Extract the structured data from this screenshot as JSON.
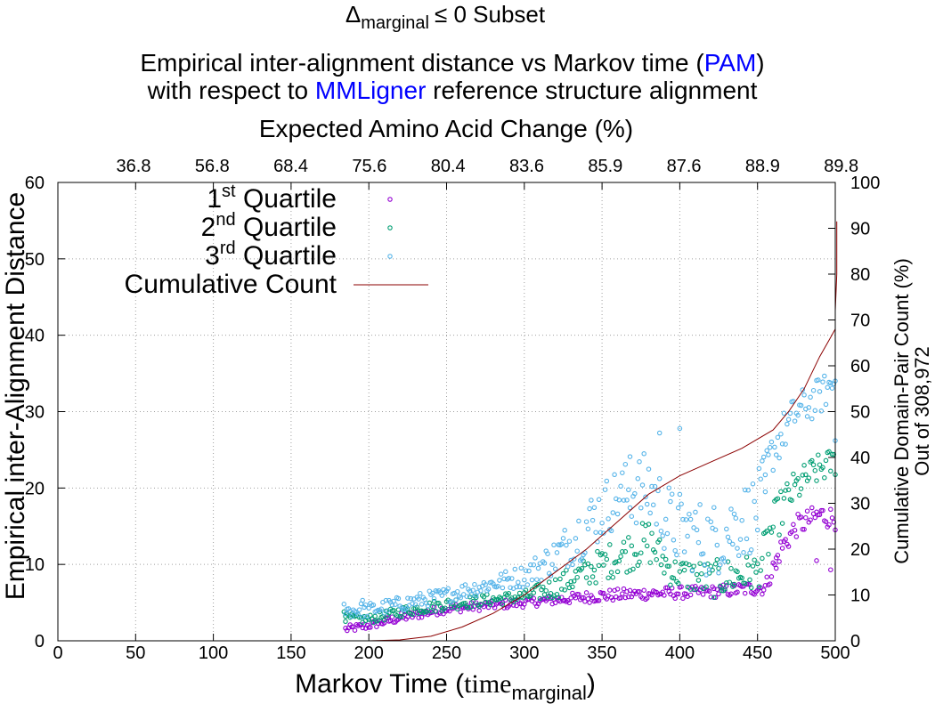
{
  "chart_data": {
    "type": "scatter",
    "title": {
      "subset_symbol": "Δ",
      "subset_subscript": "marginal",
      "subset_rest": "≤ 0 Subset",
      "line1_pre": "Empirical inter-alignment distance vs Markov time (",
      "line1_link": "PAM",
      "line1_post": ")",
      "line2_pre": "with respect to ",
      "line2_link": "MMLigner",
      "line2_post": " reference structure alignment"
    },
    "x2label": "Expected Amino Acid Change (%)",
    "x2ticks": [
      "36.8",
      "56.8",
      "68.4",
      "75.6",
      "80.4",
      "83.6",
      "85.9",
      "87.6",
      "88.9",
      "89.8"
    ],
    "xlabel": {
      "pre": "Markov Time (",
      "serif": "time",
      "sub": "marginal",
      "post": ")"
    },
    "ylabel": "Empirical inter-Alignment Distance",
    "y2label_line1": "Cumulative Domain-Pair Count (%)",
    "y2label_line2": "Out of 308,972",
    "xlim": [
      0,
      500
    ],
    "ylim": [
      0,
      60
    ],
    "y2lim": [
      0,
      100
    ],
    "xticks": [
      0,
      50,
      100,
      150,
      200,
      250,
      300,
      350,
      400,
      450,
      500
    ],
    "yticks": [
      0,
      10,
      20,
      30,
      40,
      50,
      60
    ],
    "y2ticks": [
      0,
      10,
      20,
      30,
      40,
      50,
      60,
      70,
      80,
      90,
      100
    ],
    "grid": true,
    "legend_position": "top-left",
    "legend": [
      {
        "base": "1",
        "sup": "st",
        "rest": " Quartile"
      },
      {
        "base": "2",
        "sup": "nd",
        "rest": " Quartile"
      },
      {
        "base": "3",
        "sup": "rd",
        "rest": " Quartile"
      },
      {
        "base": "Cumulative Count",
        "sup": "",
        "rest": ""
      }
    ],
    "colors": {
      "q1": "#9400d3",
      "q2": "#009e73",
      "q3": "#56b4e9",
      "cumulative": "#8b0000",
      "link": "#0000ff",
      "grid": "#a0a0a0"
    },
    "series": [
      {
        "type": "scatter",
        "color_key": "q1",
        "x_range": [
          185,
          500
        ],
        "anchors": [
          [
            185,
            1.5
          ],
          [
            200,
            2.0
          ],
          [
            220,
            3.0
          ],
          [
            250,
            4.2
          ],
          [
            300,
            5.0
          ],
          [
            350,
            5.9
          ],
          [
            380,
            6.2
          ],
          [
            420,
            6.4
          ],
          [
            455,
            7.0
          ],
          [
            465,
            12.0
          ],
          [
            475,
            15.0
          ],
          [
            490,
            16.5
          ],
          [
            500,
            16.0
          ]
        ],
        "noise": [
          0.5,
          0.5,
          0.6,
          0.6,
          0.6,
          0.8,
          0.8,
          0.8,
          1.0,
          1.5,
          1.5,
          1.5,
          1.5
        ],
        "points": [
          [
            488,
            10.5
          ],
          [
            497,
            9.3
          ],
          [
            462,
            9.5
          ]
        ]
      },
      {
        "type": "scatter",
        "color_key": "q2",
        "x_range": [
          185,
          500
        ],
        "anchors": [
          [
            185,
            3.0
          ],
          [
            200,
            2.8
          ],
          [
            220,
            3.8
          ],
          [
            250,
            4.8
          ],
          [
            300,
            5.8
          ],
          [
            320,
            7.0
          ],
          [
            340,
            9.0
          ],
          [
            360,
            11.0
          ],
          [
            380,
            13.0
          ],
          [
            395,
            9.0
          ],
          [
            420,
            8.0
          ],
          [
            450,
            9.0
          ],
          [
            460,
            15.0
          ],
          [
            470,
            19.0
          ],
          [
            485,
            22.0
          ],
          [
            500,
            23.5
          ]
        ],
        "noise": [
          0.6,
          0.6,
          0.7,
          0.8,
          0.8,
          1.5,
          2.0,
          2.5,
          3.0,
          2.0,
          2.5,
          2.5,
          3.0,
          2.5,
          2.0,
          2.0
        ],
        "points": [
          [
            184,
            3.8
          ],
          [
            185,
            3.2
          ]
        ]
      },
      {
        "type": "scatter",
        "color_key": "q3",
        "x_range": [
          185,
          500
        ],
        "anchors": [
          [
            185,
            4.0
          ],
          [
            200,
            4.0
          ],
          [
            220,
            4.8
          ],
          [
            250,
            6.0
          ],
          [
            280,
            7.5
          ],
          [
            300,
            8.5
          ],
          [
            320,
            11.0
          ],
          [
            340,
            15.0
          ],
          [
            360,
            19.0
          ],
          [
            380,
            20.0
          ],
          [
            395,
            15.0
          ],
          [
            420,
            13.0
          ],
          [
            450,
            17.0
          ],
          [
            460,
            25.0
          ],
          [
            475,
            30.0
          ],
          [
            490,
            32.0
          ],
          [
            500,
            34.0
          ]
        ],
        "noise": [
          1.0,
          1.0,
          1.0,
          1.0,
          1.2,
          1.5,
          2.5,
          4.0,
          4.0,
          5.0,
          5.0,
          5.0,
          5.0,
          3.0,
          2.5,
          2.5,
          2.0
        ],
        "points": [
          [
            184,
            4.8
          ],
          [
            196,
            5.3
          ],
          [
            400,
            27.8
          ],
          [
            387,
            27.2
          ],
          [
            368,
            24.1
          ],
          [
            500,
            26.2
          ],
          [
            455,
            19.5
          ]
        ]
      },
      {
        "type": "line",
        "color_key": "cumulative",
        "axis": "y2",
        "points": [
          [
            200,
            0
          ],
          [
            220,
            0.2
          ],
          [
            240,
            1.0
          ],
          [
            260,
            3.0
          ],
          [
            280,
            6.0
          ],
          [
            300,
            10.0
          ],
          [
            320,
            15.0
          ],
          [
            340,
            20.0
          ],
          [
            360,
            26.0
          ],
          [
            380,
            32.0
          ],
          [
            400,
            36.0
          ],
          [
            420,
            39.0
          ],
          [
            440,
            42.0
          ],
          [
            460,
            46.0
          ],
          [
            470,
            50.0
          ],
          [
            480,
            55.0
          ],
          [
            490,
            62.0
          ],
          [
            495,
            65.0
          ],
          [
            500,
            68.0
          ],
          [
            500,
            72.0
          ],
          [
            501,
            80.0
          ],
          [
            501,
            90.0
          ],
          [
            501,
            91.5
          ]
        ]
      }
    ]
  }
}
